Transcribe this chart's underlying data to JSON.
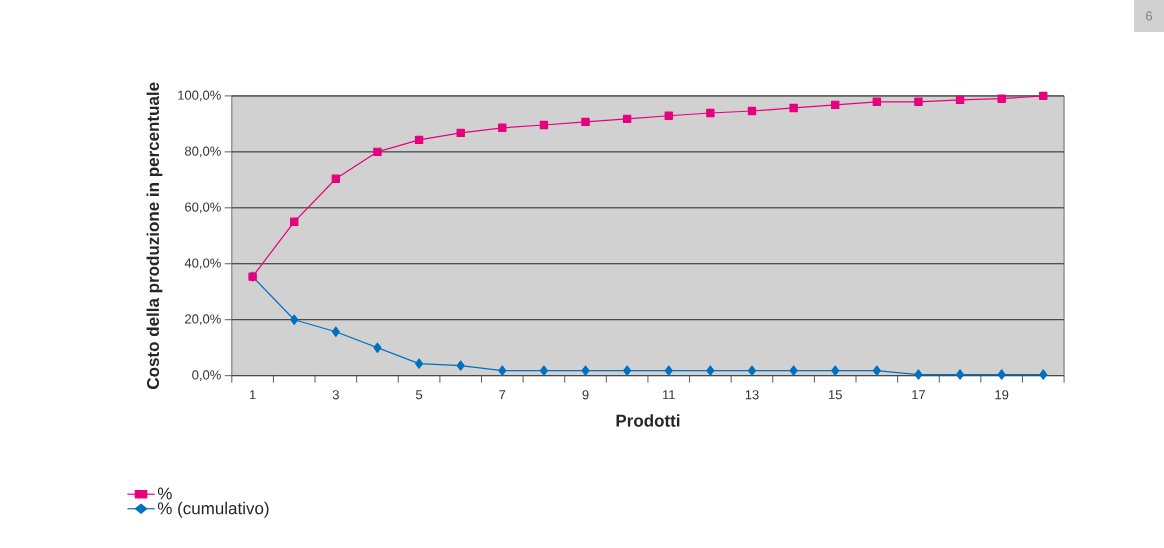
{
  "chart_data": {
    "type": "line",
    "xlabel": "Prodotti",
    "ylabel": "Costo della produzione in percentuale",
    "categories": [
      "1",
      null,
      "3",
      null,
      "5",
      null,
      "7",
      null,
      "9",
      null,
      "11",
      null,
      "13",
      null,
      "15",
      null,
      "17",
      null,
      "19",
      null
    ],
    "series": [
      {
        "name": "%",
        "color": "#e6007e",
        "marker": "square",
        "values": [
          35.4,
          55,
          70.4,
          80,
          84.3,
          86.8,
          88.6,
          89.6,
          90.7,
          91.8,
          92.9,
          93.9,
          94.6,
          95.7,
          96.8,
          97.9,
          97.9,
          98.6,
          99,
          100
        ]
      },
      {
        "name": "% (cumulativo)",
        "color": "#0070c0",
        "marker": "diamond",
        "values": [
          35.4,
          20,
          15.7,
          10,
          4.3,
          3.6,
          1.8,
          1.8,
          1.8,
          1.8,
          1.8,
          1.8,
          1.8,
          1.8,
          1.8,
          1.8,
          0.4,
          0.4,
          0.4,
          0.4
        ]
      }
    ],
    "ylim": [
      0,
      100
    ],
    "yticks": [
      {
        "value": 0,
        "label": "0,0%"
      },
      {
        "value": 20,
        "label": "20,0%"
      },
      {
        "value": 40,
        "label": "40,0%"
      },
      {
        "value": 60,
        "label": "60,0%"
      },
      {
        "value": 80,
        "label": "80,0%"
      },
      {
        "value": 100,
        "label": "100,0%"
      }
    ],
    "grid": "y",
    "legend": "bottom",
    "line_style": "solid",
    "annotations": [
      "6"
    ]
  }
}
